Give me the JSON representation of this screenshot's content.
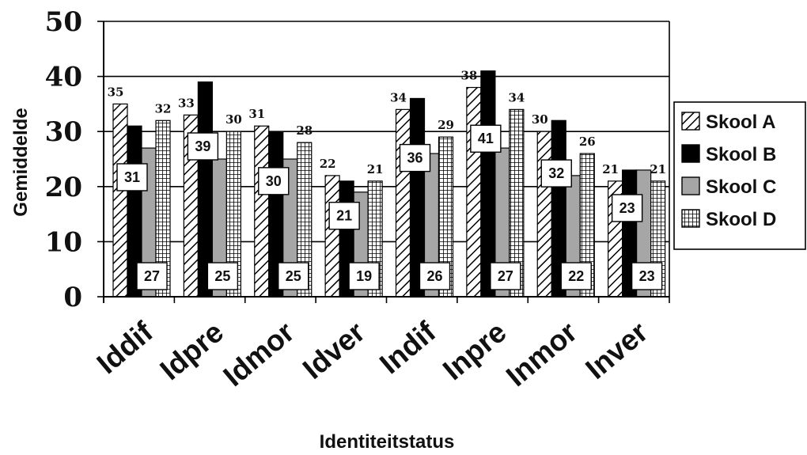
{
  "chart_data": {
    "type": "bar",
    "categories": [
      "Iddif",
      "Idpre",
      "Idmor",
      "Idver",
      "Indif",
      "Inpre",
      "Inmor",
      "Inver"
    ],
    "series": [
      {
        "name": "Skool A",
        "values": [
          35,
          33,
          31,
          22,
          34,
          38,
          30,
          21
        ],
        "fill": "hatch-diagonal",
        "label_style": "above"
      },
      {
        "name": "Skool B",
        "values": [
          31,
          39,
          30,
          21,
          36,
          41,
          32,
          23
        ],
        "fill": "#000000",
        "label_style": "boxed"
      },
      {
        "name": "Skool C",
        "values": [
          27,
          25,
          25,
          19,
          26,
          27,
          22,
          23
        ],
        "fill": "#a6a6a6",
        "label_style": "boxed"
      },
      {
        "name": "Skool D",
        "values": [
          32,
          30,
          28,
          21,
          29,
          34,
          26,
          21
        ],
        "fill": "hatch-grid",
        "label_style": "above"
      }
    ],
    "xlabel": "Identiteitstatus",
    "ylabel": "Gemiddelde",
    "ylim": [
      0,
      50
    ],
    "yticks": [
      "0",
      "10",
      "20",
      "30",
      "40",
      "50"
    ],
    "grid": true,
    "legend": "right"
  }
}
